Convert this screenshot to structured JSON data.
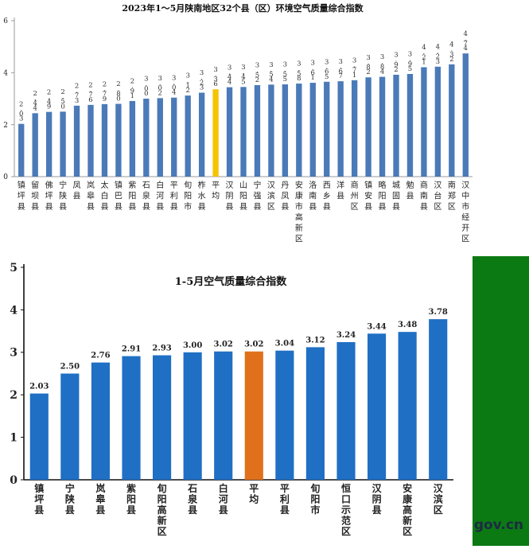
{
  "chart_data": [
    {
      "type": "bar",
      "title": "2023年1～5月陕南地区32个县（区）环境空气质量综合指数",
      "xlabel": "",
      "ylabel": "",
      "ylim": [
        0,
        6
      ],
      "yticks": [
        0,
        2,
        4,
        6
      ],
      "grid": false,
      "bar_color": "#4a7ab8",
      "highlight_color": "#f5c400",
      "highlight_category": "平均",
      "categories": [
        "镇坪县",
        "留坝县",
        "佛坪县",
        "宁陕县",
        "凤县",
        "岚皋县",
        "太白县",
        "镇巴县",
        "紫阳县",
        "石泉县",
        "白河县",
        "平利县",
        "旬阳市",
        "柞水县",
        "平均",
        "汉阴县",
        "山阳县",
        "宁强县",
        "汉滨区",
        "丹凤县",
        "安康市高新区",
        "洛南县",
        "西乡县",
        "洋县",
        "商州区",
        "镇安县",
        "略阳县",
        "城固县",
        "勉县",
        "商南县",
        "汉台区",
        "南郑区",
        "汉中市经开区"
      ],
      "values": [
        2.03,
        2.44,
        2.49,
        2.5,
        2.73,
        2.76,
        2.79,
        2.8,
        2.91,
        3.0,
        3.02,
        3.04,
        3.12,
        3.23,
        3.36,
        3.44,
        3.45,
        3.52,
        3.54,
        3.55,
        3.58,
        3.61,
        3.65,
        3.67,
        3.71,
        3.82,
        3.84,
        3.92,
        3.95,
        4.21,
        4.23,
        4.32,
        4.74
      ],
      "value_labels": [
        "2.03",
        "2.44",
        "2.49",
        "2.50",
        "2.73",
        "2.76",
        "2.79",
        "2.80",
        "2.91",
        "3.00",
        "3.02",
        "3.04",
        "3.12",
        "3.23",
        "3.36",
        "3.44",
        "3.45",
        "3.52",
        "3.54",
        "3.55",
        "3.58",
        "3.61",
        "3.65",
        "3.67",
        "3.71",
        "3.82",
        "3.84",
        "3.92",
        "3.95",
        "4.21",
        "4.23",
        "4.32",
        "4.74"
      ]
    },
    {
      "type": "bar",
      "title": "1-5月空气质量综合指数",
      "xlabel": "",
      "ylabel": "",
      "ylim": [
        0,
        5
      ],
      "yticks": [
        0,
        1,
        2,
        3,
        4,
        5
      ],
      "grid": false,
      "bar_color": "#1f6fc4",
      "highlight_color": "#e0701c",
      "highlight_category": "平均",
      "categories": [
        "镇坪县",
        "宁陕县",
        "岚皋县",
        "紫阳县",
        "旬阳高新区",
        "石泉县",
        "白河县",
        "平均",
        "平利县",
        "旬阳市",
        "恒口示范区",
        "汉阴县",
        "安康高新区",
        "汉滨区"
      ],
      "values": [
        2.03,
        2.5,
        2.76,
        2.91,
        2.93,
        3.0,
        3.02,
        3.02,
        3.04,
        3.12,
        3.24,
        3.44,
        3.48,
        3.78
      ],
      "value_labels": [
        "2.03",
        "2.50",
        "2.76",
        "2.91",
        "2.93",
        "3.00",
        "3.02",
        "3.02",
        "3.04",
        "3.12",
        "3.24",
        "3.44",
        "3.48",
        "3.78"
      ]
    }
  ],
  "watermark": "gov.cn"
}
